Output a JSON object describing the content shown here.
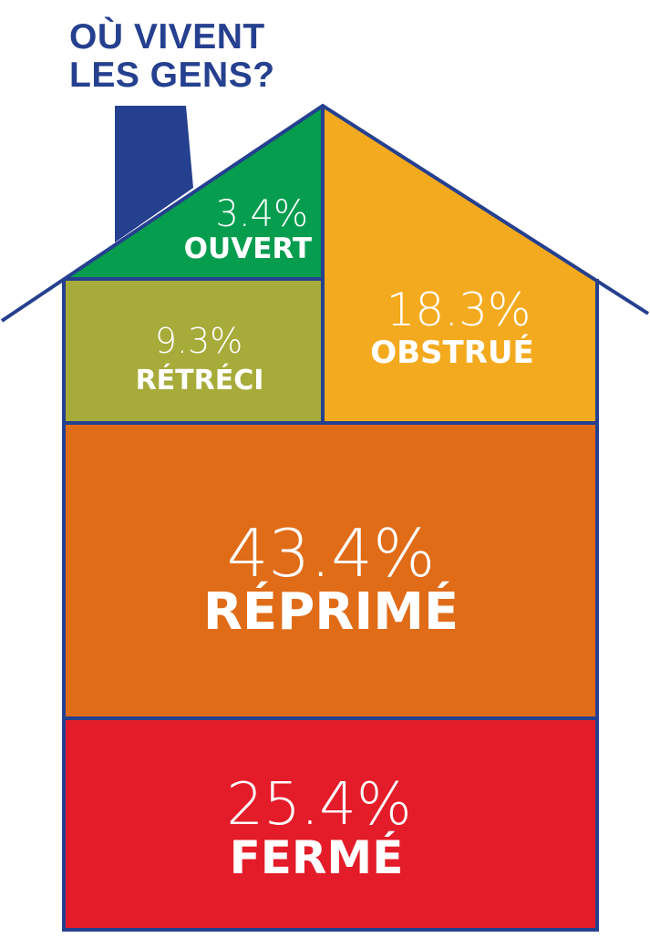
{
  "title": {
    "line1": "OÙ VIVENT",
    "line2": "LES GENS?"
  },
  "colors": {
    "outline": "#25408f",
    "chimney": "#25408f",
    "ouvert": "#069d4f",
    "retreci": "#a7ab3a",
    "obstrue": "#f4aa1f",
    "reprime": "#e06c18",
    "ferme": "#e41c29",
    "text": "#ffffff"
  },
  "sections": {
    "ouvert": {
      "value": "3.4%",
      "label": "OUVERT"
    },
    "retreci": {
      "value": "9.3%",
      "label": "RÉTRÉCI"
    },
    "obstrue": {
      "value": "18.3%",
      "label": "OBSTRUÉ"
    },
    "reprime": {
      "value": "43.4%",
      "label": "RÉPRIMÉ"
    },
    "ferme": {
      "value": "25.4%",
      "label": "FERMÉ"
    }
  }
}
